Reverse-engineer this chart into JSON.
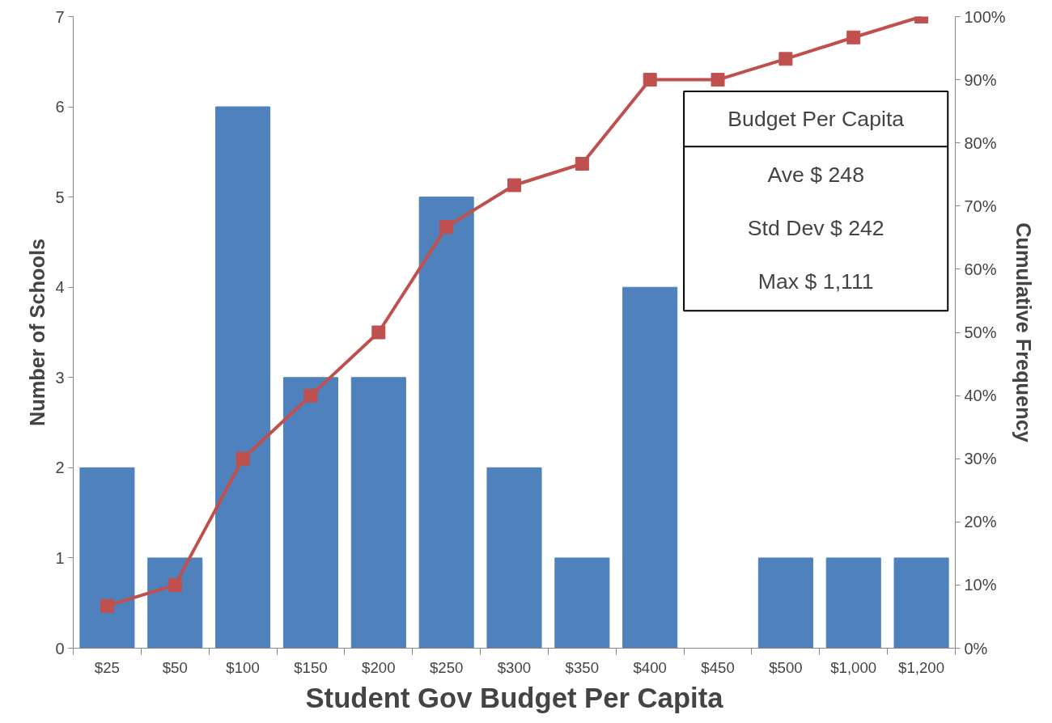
{
  "chart_data": {
    "type": "bar",
    "xlabel": "Student Gov Budget Per Capita",
    "ylabel": "Number of Schools",
    "y2label": "Cumulative Frequency",
    "categories": [
      "$25",
      "$50",
      "$100",
      "$150",
      "$200",
      "$250",
      "$300",
      "$350",
      "$400",
      "$450",
      "$500",
      "$1,000",
      "$1,200"
    ],
    "series": [
      {
        "color": "#4f81bd",
        "values": [
          2,
          1,
          6,
          3,
          3,
          5,
          2,
          1,
          4,
          0,
          1,
          1,
          1
        ]
      },
      {
        "type": "line",
        "axis": "y2",
        "color": "#c0504d",
        "marker": "square",
        "values": [
          6.7,
          10,
          30,
          40,
          50,
          66.7,
          73.3,
          76.7,
          90,
          90,
          93.3,
          96.7,
          100
        ]
      }
    ],
    "ylim": [
      0,
      7
    ],
    "yticks": [
      0,
      1,
      2,
      3,
      4,
      5,
      6,
      7
    ],
    "y2lim": [
      0,
      100
    ],
    "y2ticks": [
      {
        "value": 0,
        "label": "0%"
      },
      {
        "value": 10,
        "label": "10%"
      },
      {
        "value": 20,
        "label": "20%"
      },
      {
        "value": 30,
        "label": "30%"
      },
      {
        "value": 40,
        "label": "40%"
      },
      {
        "value": 50,
        "label": "50%"
      },
      {
        "value": 60,
        "label": "60%"
      },
      {
        "value": 70,
        "label": "70%"
      },
      {
        "value": 80,
        "label": "80%"
      },
      {
        "value": 90,
        "label": "90%"
      },
      {
        "value": 100,
        "label": "100%"
      }
    ],
    "annotations": [
      "Budget Per Capita",
      "Ave $ 248",
      "Std Dev $ 242",
      "Max $ 1,111"
    ],
    "grid": false
  }
}
